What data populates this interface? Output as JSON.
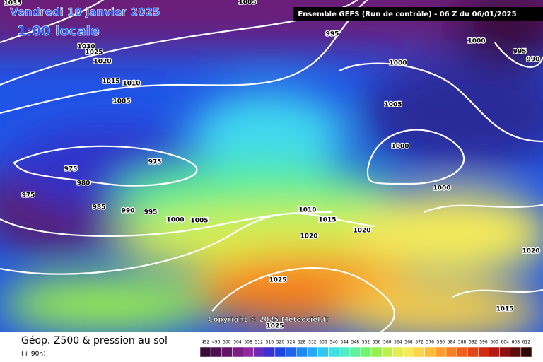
{
  "header": {
    "date": "Vendredi 10 janvier 2025",
    "time": "1:00 locale",
    "run": "Ensemble GEFS  (Run de contrôle)  -  06 Z du 06/01/2025"
  },
  "isobar_labels": [
    1035,
    1005,
    995,
    1000,
    995,
    990,
    1030,
    1025,
    1020,
    1000,
    1015,
    1010,
    1005,
    1005,
    1000,
    975,
    975,
    980,
    975,
    1000,
    985,
    990,
    995,
    1000,
    1005,
    1010,
    1015,
    1020,
    1020,
    1020,
    1025,
    1015,
    1025
  ],
  "copyright": "Copyright © 2025 Meteociel.fr",
  "footer": {
    "title": "Géop. Z500 & pression au sol",
    "lead": "(+ 90h)"
  },
  "legend": {
    "ticks": [
      492,
      496,
      500,
      504,
      508,
      512,
      516,
      520,
      524,
      528,
      532,
      536,
      540,
      544,
      548,
      552,
      556,
      560,
      564,
      568,
      572,
      576,
      580,
      584,
      588,
      592,
      596,
      600,
      604,
      608,
      612
    ],
    "colors": [
      "#3a0a3a",
      "#4e0f52",
      "#64156a",
      "#7a1c84",
      "#8e2a9e",
      "#6a2ab8",
      "#3b2fd0",
      "#1f45e0",
      "#1e66ee",
      "#2088f4",
      "#25a8f8",
      "#2fc6f4",
      "#3ee0e6",
      "#4feec8",
      "#5ef29a",
      "#72f46a",
      "#98f050",
      "#c0ee48",
      "#e2ee50",
      "#f6ea5a",
      "#fbd64a",
      "#fcbc3a",
      "#fb9e2e",
      "#f78024",
      "#f0621c",
      "#e44618",
      "#d02c14",
      "#b41a12",
      "#901010",
      "#600a0a",
      "#300404"
    ]
  }
}
